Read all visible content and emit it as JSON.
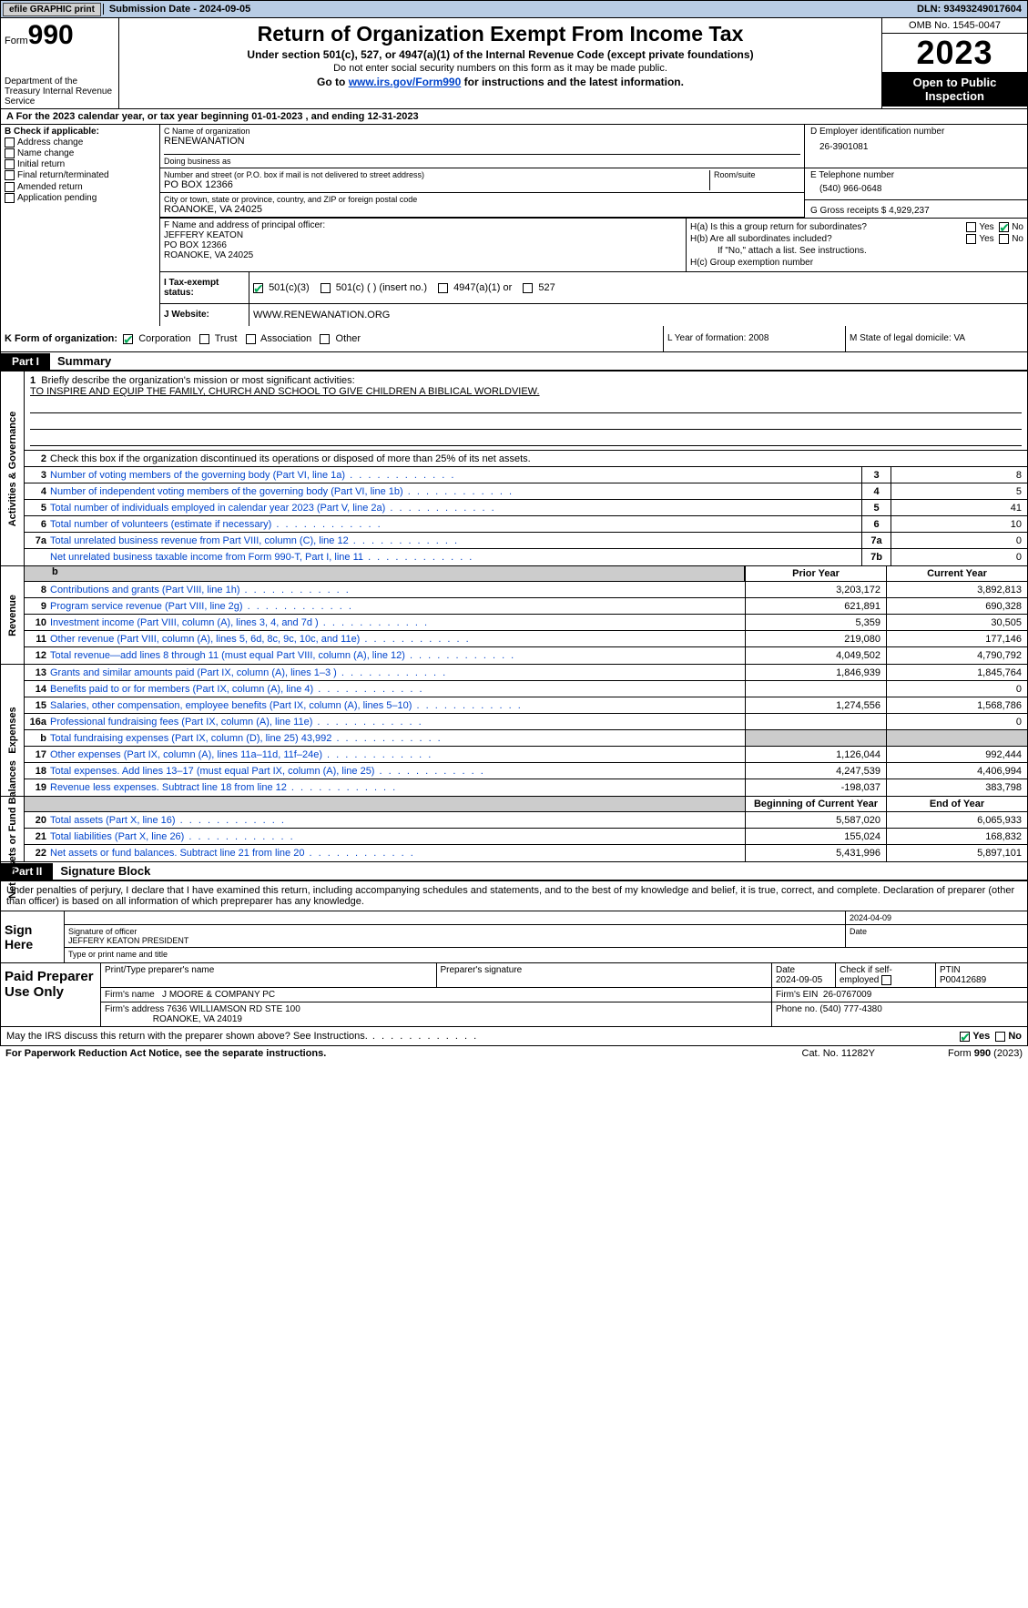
{
  "topbar": {
    "efile": "efile GRAPHIC print",
    "submission": "Submission Date - 2024-09-05",
    "dln": "DLN: 93493249017604"
  },
  "header": {
    "form": "Form",
    "formnum": "990",
    "dept": "Department of the Treasury Internal Revenue Service",
    "title": "Return of Organization Exempt From Income Tax",
    "sub1": "Under section 501(c), 527, or 4947(a)(1) of the Internal Revenue Code (except private foundations)",
    "sub2": "Do not enter social security numbers on this form as it may be made public.",
    "sub3_pre": "Go to ",
    "sub3_link": "www.irs.gov/Form990",
    "sub3_post": " for instructions and the latest information.",
    "omb": "OMB No. 1545-0047",
    "year": "2023",
    "otp": "Open to Public Inspection"
  },
  "row_a": "A For the 2023 calendar year, or tax year beginning 01-01-2023    , and ending 12-31-2023",
  "section_b": {
    "label": "B Check if applicable:",
    "opts": [
      "Address change",
      "Name change",
      "Initial return",
      "Final return/terminated",
      "Amended return",
      "Application pending"
    ]
  },
  "section_c": {
    "name_cap": "C Name of organization",
    "name": "RENEWANATION",
    "dba_cap": "Doing business as",
    "dba": "",
    "street_cap": "Number and street (or P.O. box if mail is not delivered to street address)",
    "street": "PO BOX 12366",
    "room_cap": "Room/suite",
    "city_cap": "City or town, state or province, country, and ZIP or foreign postal code",
    "city": "ROANOKE, VA  24025"
  },
  "section_d": {
    "cap": "D Employer identification number",
    "val": "26-3901081"
  },
  "section_e": {
    "cap": "E Telephone number",
    "val": "(540) 966-0648"
  },
  "section_g": "G Gross receipts $ 4,929,237",
  "section_f": {
    "cap": "F  Name and address of principal officer:",
    "l1": "JEFFERY KEATON",
    "l2": "PO BOX 12366",
    "l3": "ROANOKE, VA  24025"
  },
  "section_h": {
    "ha": "H(a)  Is this a group return for subordinates?",
    "hb": "H(b)  Are all subordinates included?",
    "hb_note": "If \"No,\" attach a list. See instructions.",
    "hc": "H(c)  Group exemption number",
    "yes": "Yes",
    "no": "No"
  },
  "tax_status": {
    "label": "I    Tax-exempt status:",
    "o1": "501(c)(3)",
    "o2": "501(c) (  ) (insert no.)",
    "o3": "4947(a)(1) or",
    "o4": "527"
  },
  "website": {
    "label": "J   Website:",
    "val": "WWW.RENEWANATION.ORG"
  },
  "k": {
    "label": "K Form of organization:",
    "opts": [
      "Corporation",
      "Trust",
      "Association",
      "Other"
    ]
  },
  "l": "L Year of formation: 2008",
  "m": "M State of legal domicile: VA",
  "part1": {
    "hdr": "Part I",
    "title": "Summary",
    "line1_cap": "Briefly describe the organization's mission or most significant activities:",
    "line1_val": "TO INSPIRE AND EQUIP THE FAMILY, CHURCH AND SCHOOL TO GIVE CHILDREN A BIBLICAL WORLDVIEW.",
    "line2": "Check this box      if the organization discontinued its operations or disposed of more than 25% of its net assets.",
    "gov_lines": [
      {
        "n": "3",
        "d": "Number of voting members of the governing body (Part VI, line 1a)",
        "b": "3",
        "v": "8"
      },
      {
        "n": "4",
        "d": "Number of independent voting members of the governing body (Part VI, line 1b)",
        "b": "4",
        "v": "5"
      },
      {
        "n": "5",
        "d": "Total number of individuals employed in calendar year 2023 (Part V, line 2a)",
        "b": "5",
        "v": "41"
      },
      {
        "n": "6",
        "d": "Total number of volunteers (estimate if necessary)",
        "b": "6",
        "v": "10"
      },
      {
        "n": "7a",
        "d": "Total unrelated business revenue from Part VIII, column (C), line 12",
        "b": "7a",
        "v": "0"
      },
      {
        "n": "",
        "d": "Net unrelated business taxable income from Form 990-T, Part I, line 11",
        "b": "7b",
        "v": "0"
      }
    ],
    "prior": "Prior Year",
    "current": "Current Year",
    "rev_lines": [
      {
        "n": "8",
        "d": "Contributions and grants (Part VIII, line 1h)",
        "p": "3,203,172",
        "c": "3,892,813"
      },
      {
        "n": "9",
        "d": "Program service revenue (Part VIII, line 2g)",
        "p": "621,891",
        "c": "690,328"
      },
      {
        "n": "10",
        "d": "Investment income (Part VIII, column (A), lines 3, 4, and 7d )",
        "p": "5,359",
        "c": "30,505"
      },
      {
        "n": "11",
        "d": "Other revenue (Part VIII, column (A), lines 5, 6d, 8c, 9c, 10c, and 11e)",
        "p": "219,080",
        "c": "177,146"
      },
      {
        "n": "12",
        "d": "Total revenue—add lines 8 through 11 (must equal Part VIII, column (A), line 12)",
        "p": "4,049,502",
        "c": "4,790,792"
      }
    ],
    "exp_lines": [
      {
        "n": "13",
        "d": "Grants and similar amounts paid (Part IX, column (A), lines 1–3 )",
        "p": "1,846,939",
        "c": "1,845,764"
      },
      {
        "n": "14",
        "d": "Benefits paid to or for members (Part IX, column (A), line 4)",
        "p": "",
        "c": "0"
      },
      {
        "n": "15",
        "d": "Salaries, other compensation, employee benefits (Part IX, column (A), lines 5–10)",
        "p": "1,274,556",
        "c": "1,568,786"
      },
      {
        "n": "16a",
        "d": "Professional fundraising fees (Part IX, column (A), line 11e)",
        "p": "",
        "c": "0"
      },
      {
        "n": "b",
        "d": "Total fundraising expenses (Part IX, column (D), line 25) 43,992",
        "p": "grey",
        "c": "grey"
      },
      {
        "n": "17",
        "d": "Other expenses (Part IX, column (A), lines 11a–11d, 11f–24e)",
        "p": "1,126,044",
        "c": "992,444"
      },
      {
        "n": "18",
        "d": "Total expenses. Add lines 13–17 (must equal Part IX, column (A), line 25)",
        "p": "4,247,539",
        "c": "4,406,994"
      },
      {
        "n": "19",
        "d": "Revenue less expenses. Subtract line 18 from line 12",
        "p": "-198,037",
        "c": "383,798"
      }
    ],
    "beg": "Beginning of Current Year",
    "end": "End of Year",
    "net_lines": [
      {
        "n": "20",
        "d": "Total assets (Part X, line 16)",
        "p": "5,587,020",
        "c": "6,065,933"
      },
      {
        "n": "21",
        "d": "Total liabilities (Part X, line 26)",
        "p": "155,024",
        "c": "168,832"
      },
      {
        "n": "22",
        "d": "Net assets or fund balances. Subtract line 21 from line 20",
        "p": "5,431,996",
        "c": "5,897,101"
      }
    ]
  },
  "part2": {
    "hdr": "Part II",
    "title": "Signature Block",
    "intro": "Under penalties of perjury, I declare that I have examined this return, including accompanying schedules and statements, and to the best of my knowledge and belief, it is true, correct, and complete. Declaration of preparer (other than officer) is based on all information of which prepreparer has any knowledge."
  },
  "sign": {
    "label": "Sign Here",
    "sig_cap": "Signature of officer",
    "officer": "JEFFERY KEATON  PRESIDENT",
    "type_cap": "Type or print name and title",
    "date_cap": "Date",
    "date": "2024-04-09"
  },
  "prep": {
    "label": "Paid Preparer Use Only",
    "c1": "Print/Type preparer's name",
    "c2": "Preparer's signature",
    "c3_cap": "Date",
    "c3": "2024-09-05",
    "c4": "Check        if self-employed",
    "c5_cap": "PTIN",
    "c5": "P00412689",
    "firm_cap": "Firm's name",
    "firm": "J MOORE & COMPANY PC",
    "ein_cap": "Firm's EIN",
    "ein": "26-0767009",
    "addr_cap": "Firm's address",
    "addr1": "7636 WILLIAMSON RD STE 100",
    "addr2": "ROANOKE, VA  24019",
    "phone_cap": "Phone no.",
    "phone": "(540) 777-4380"
  },
  "may": "May the IRS discuss this return with the preparer shown above? See Instructions.",
  "footer": {
    "l": "For Paperwork Reduction Act Notice, see the separate instructions.",
    "m": "Cat. No. 11282Y",
    "r": "Form 990 (2023)"
  },
  "vlabels": {
    "gov": "Activities & Governance",
    "rev": "Revenue",
    "exp": "Expenses",
    "net": "Net Assets or Fund Balances"
  }
}
